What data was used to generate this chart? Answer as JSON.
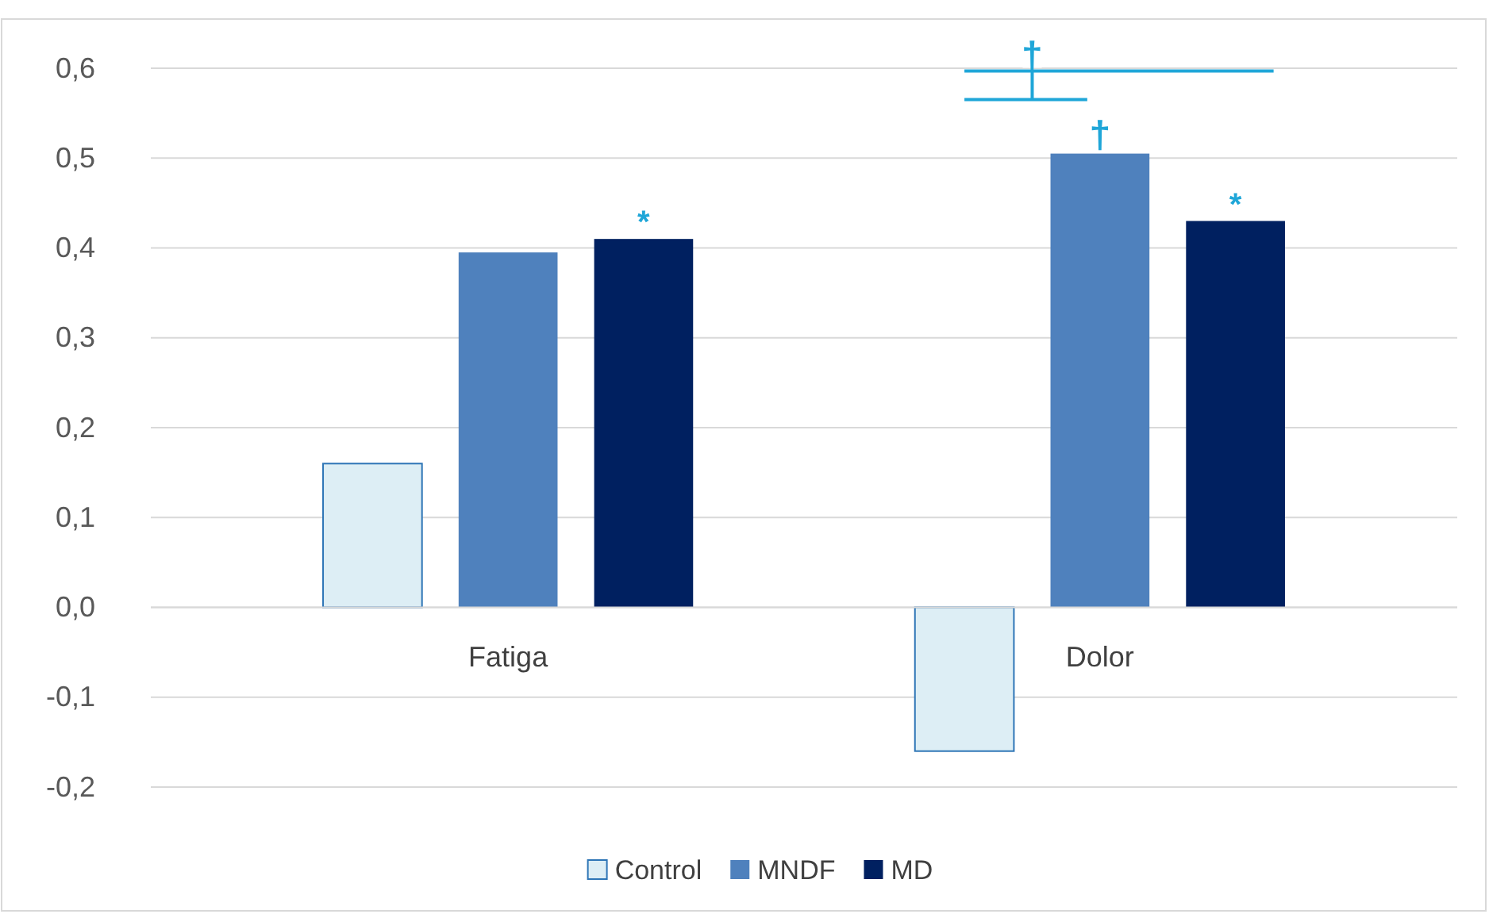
{
  "chart_data": {
    "type": "bar",
    "categories": [
      "Fatiga",
      "Dolor"
    ],
    "series": [
      {
        "name": "Control",
        "color": "#ddeef5",
        "values": [
          0.16,
          -0.16
        ]
      },
      {
        "name": "MNDF",
        "color": "#4f81bd",
        "values": [
          0.395,
          0.505
        ]
      },
      {
        "name": "MD",
        "color": "#002060",
        "values": [
          0.41,
          0.43
        ]
      }
    ],
    "ylim": [
      -0.2,
      0.6
    ],
    "yticks": [
      {
        "value": -0.2,
        "label": "-0,2"
      },
      {
        "value": -0.1,
        "label": "-0,1"
      },
      {
        "value": 0,
        "label": "0,0"
      },
      {
        "value": 0.1,
        "label": "0,1"
      },
      {
        "value": 0.2,
        "label": "0,2"
      },
      {
        "value": 0.3,
        "label": "0,3"
      },
      {
        "value": 0.4,
        "label": "0,4"
      },
      {
        "value": 0.5,
        "label": "0,5"
      },
      {
        "value": 0.6,
        "label": "0,6"
      }
    ],
    "grid": "y",
    "legend": "bottom",
    "annotations": [
      "*",
      "†",
      "*",
      "†"
    ]
  }
}
